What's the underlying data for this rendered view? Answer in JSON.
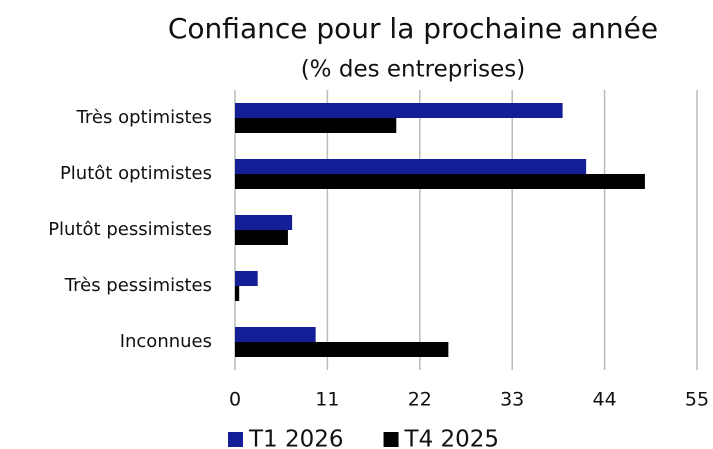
{
  "chart_data": {
    "type": "hbar",
    "title": "Confiance pour la prochaine année",
    "subtitle": "(% des entreprises)",
    "categories": [
      "Très optimistes",
      "Plutôt optimistes",
      "Plutôt pessimistes",
      "Très pessimistes",
      "Inconnues"
    ],
    "series": [
      {
        "name": "T1 2026",
        "color": "#141e96",
        "values": [
          39.0,
          41.8,
          6.8,
          2.7,
          9.6
        ]
      },
      {
        "name": "T4 2025",
        "color": "#000000",
        "values": [
          19.2,
          48.8,
          6.3,
          0.5,
          25.4
        ]
      }
    ],
    "xlim": [
      0,
      55
    ],
    "xticks": [
      0,
      11,
      22,
      33,
      44,
      55
    ],
    "grid": true,
    "legend": "bottom"
  }
}
